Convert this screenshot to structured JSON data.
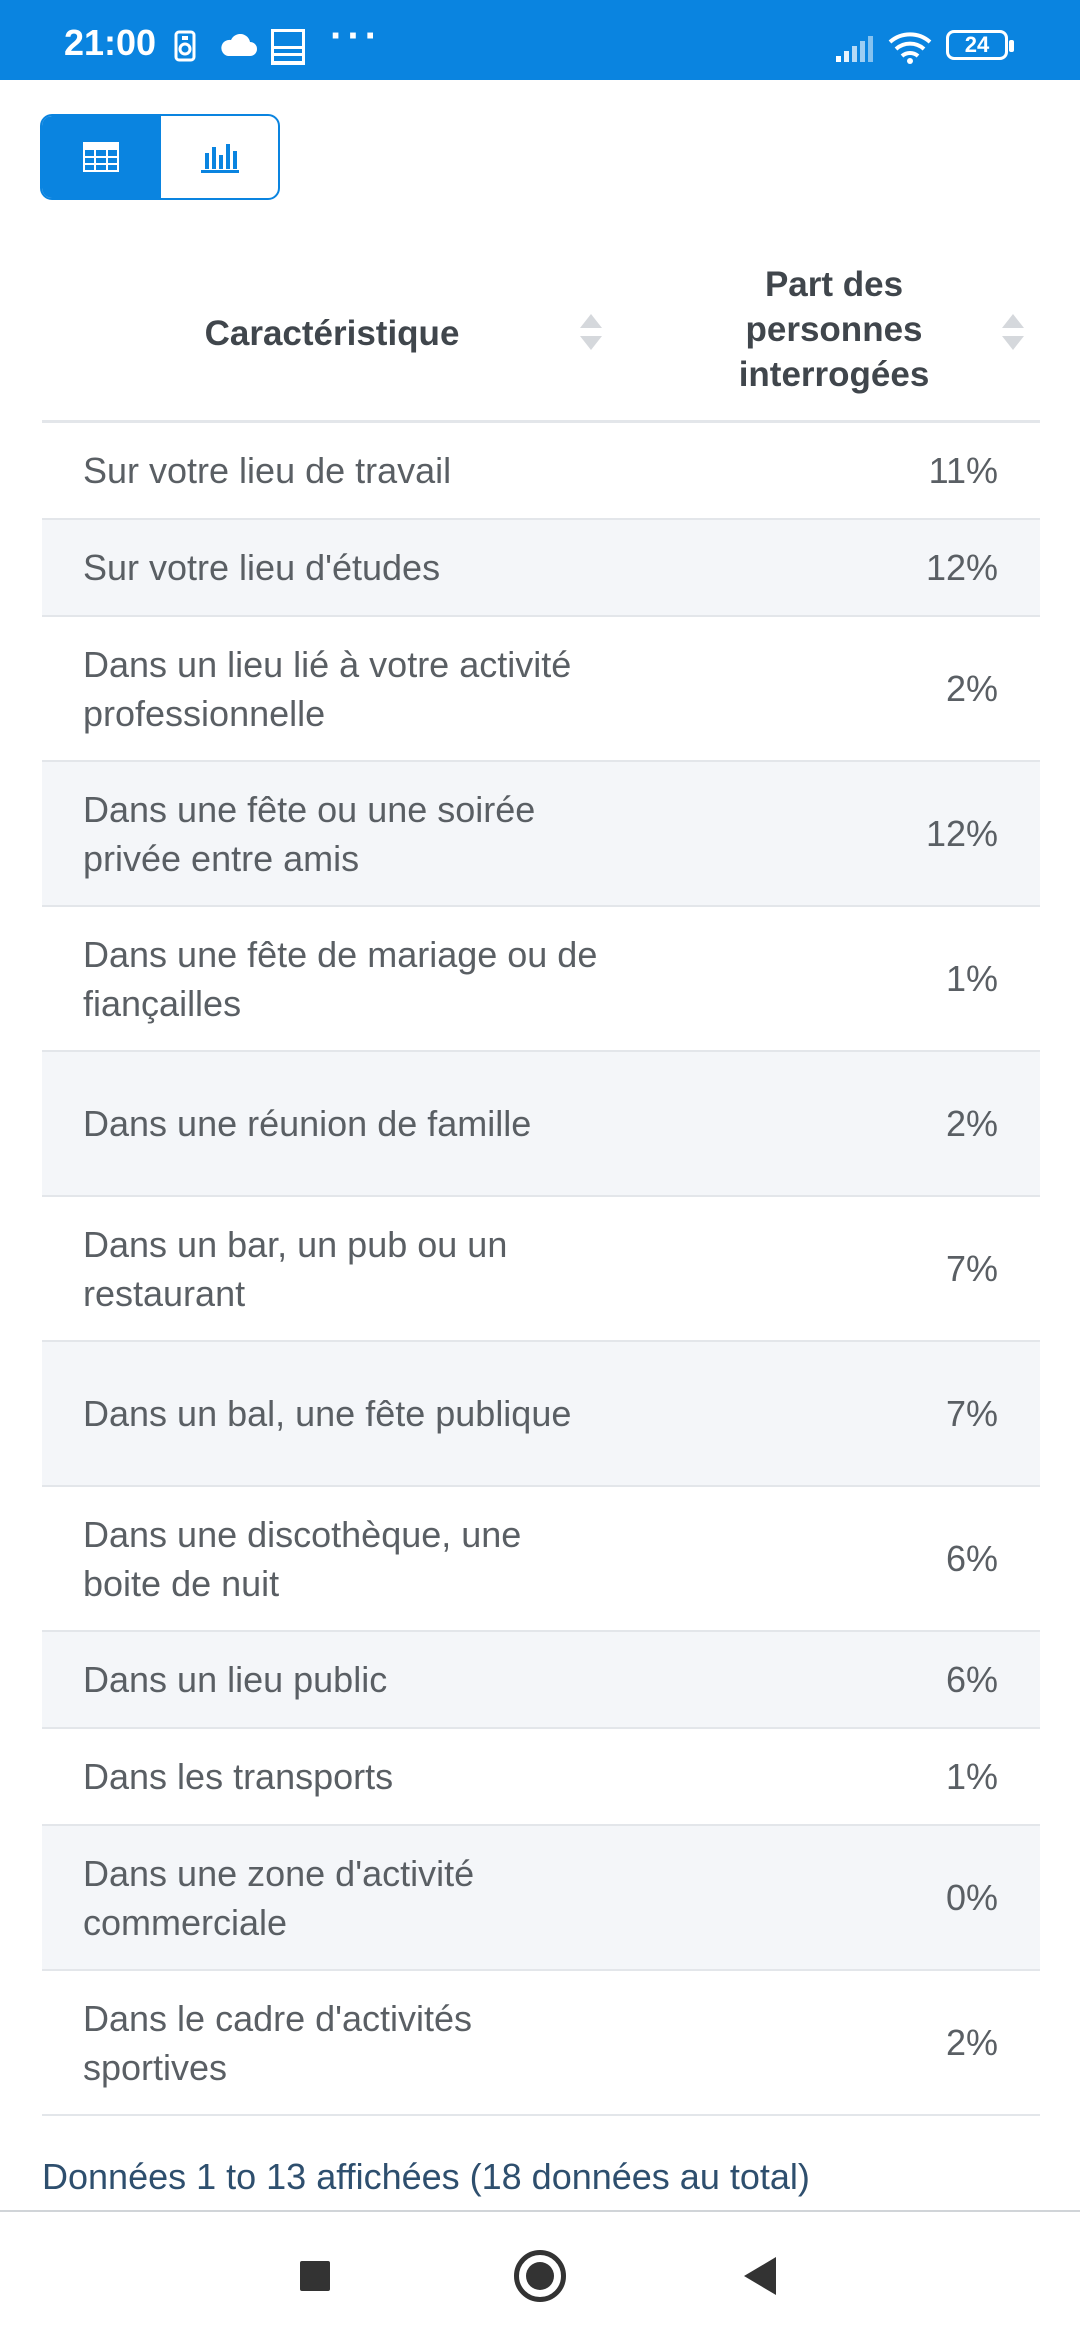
{
  "status_bar": {
    "time": "21:00",
    "more": "···",
    "battery": "24",
    "icons": [
      "sim-card-icon",
      "cloud-icon",
      "app-badge-icon",
      "signal-icon",
      "wifi-icon",
      "battery-icon"
    ]
  },
  "view_toggle": {
    "options": [
      {
        "icon": "table-icon",
        "active": true
      },
      {
        "icon": "bar-chart-icon",
        "active": false
      }
    ],
    "accent": "#0a84e0"
  },
  "table": {
    "headers": [
      "Caractéristique",
      "Part des personnes interrogées"
    ],
    "header_lines": [
      "Part des",
      "personnes",
      "interrogées"
    ],
    "rows": [
      {
        "label": "Sur votre lieu de travail",
        "value": "11%"
      },
      {
        "label": "Sur votre lieu d'études",
        "value": "12%"
      },
      {
        "label": "Dans un lieu lié à votre activité professionnelle",
        "value": "2%"
      },
      {
        "label": "Dans une fête ou une soirée privée entre amis",
        "value": "12%"
      },
      {
        "label": "Dans une fête de mariage ou de fiançailles",
        "value": "1%"
      },
      {
        "label": "Dans une réunion de famille",
        "value": "2%"
      },
      {
        "label": "Dans un bar, un pub ou un restaurant",
        "value": "7%"
      },
      {
        "label": "Dans un bal, une fête publique",
        "value": "7%"
      },
      {
        "label": "Dans une discothèque, une boite de nuit",
        "value": "6%"
      },
      {
        "label": "Dans un lieu public",
        "value": "6%"
      },
      {
        "label": "Dans les transports",
        "value": "1%"
      },
      {
        "label": "Dans une zone d'activité commerciale",
        "value": "0%"
      },
      {
        "label": "Dans le cadre d'activités sportives",
        "value": "2%"
      }
    ]
  },
  "footer": {
    "info": "Données 1 to 13 affichées (18 données au total)"
  },
  "nav_bar": {
    "buttons": [
      "recents-button",
      "home-button",
      "back-button"
    ]
  }
}
